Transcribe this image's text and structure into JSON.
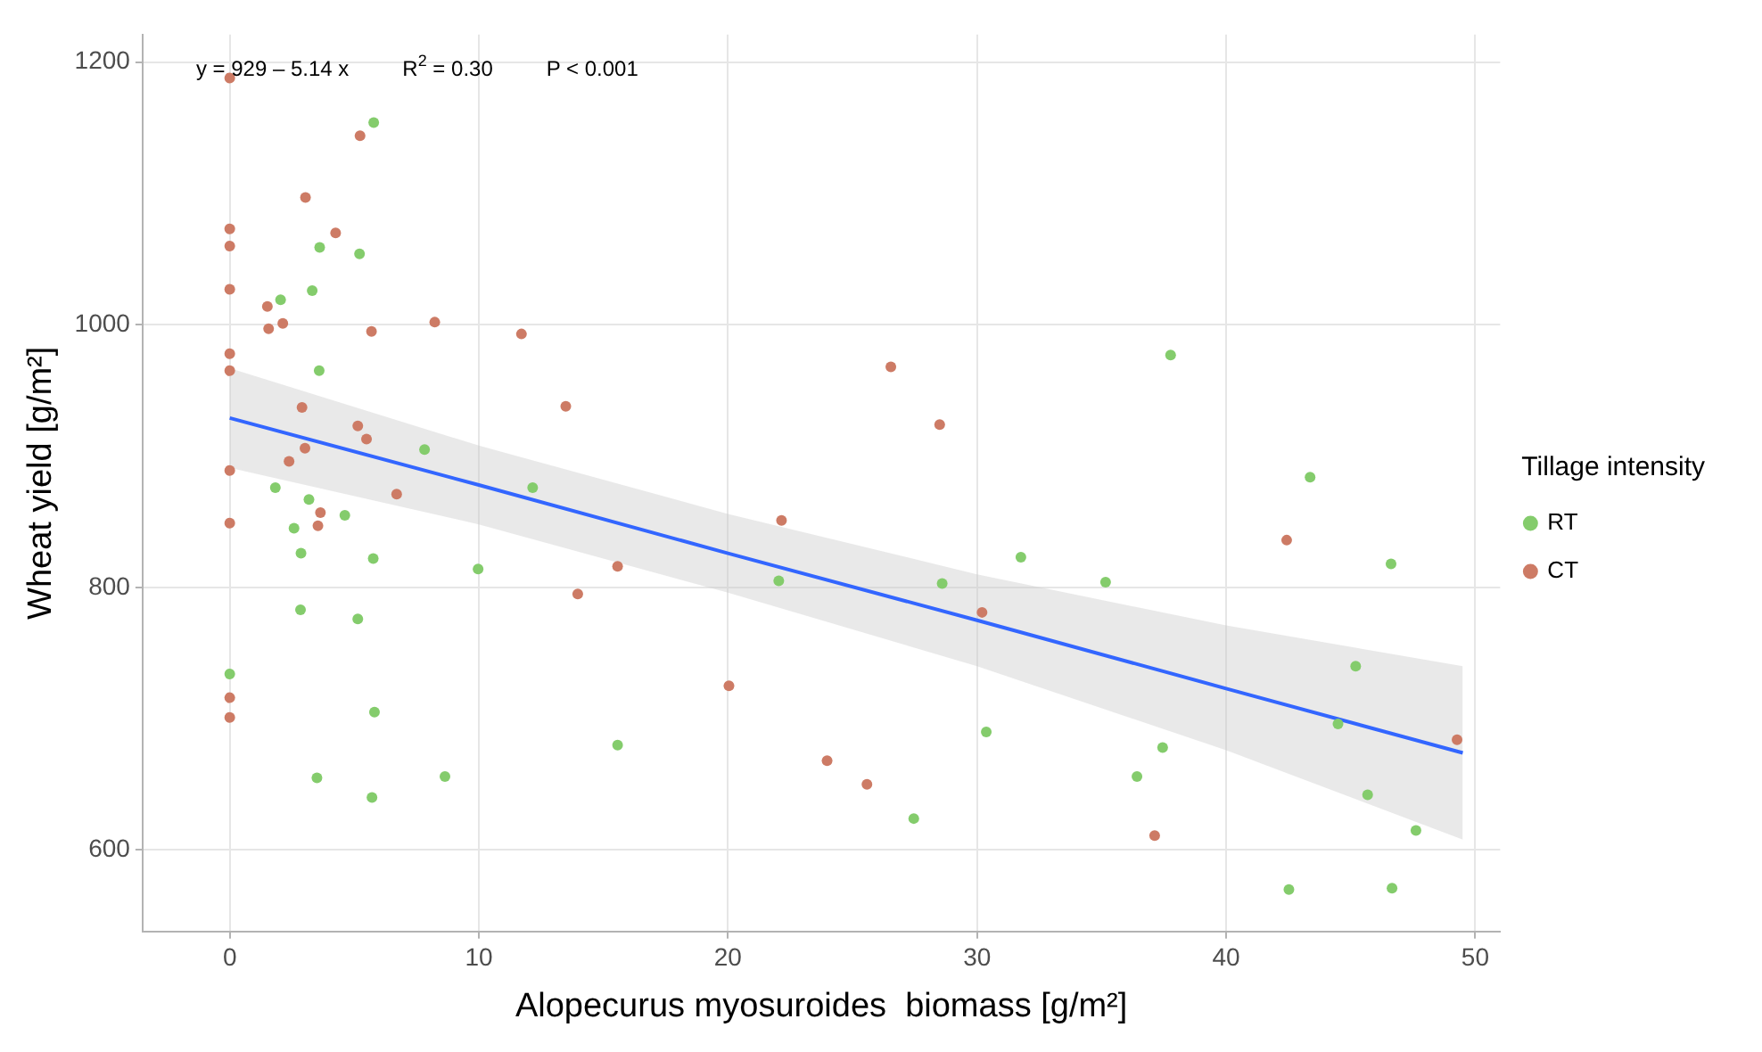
{
  "chart_data": {
    "type": "scatter",
    "xlabel": "Alopecurus myosuroides  biomass [g/m²]",
    "ylabel": "Wheat yield [g/m²]",
    "legend_title": "Tillage intensity",
    "legend": "right",
    "grid": true,
    "marker": "circle",
    "xlim": [
      -3.5,
      51
    ],
    "xticks": [
      0,
      10,
      20,
      30,
      40,
      50
    ],
    "ylim": [
      538,
      1221
    ],
    "yticks": [
      600,
      800,
      1000,
      1200
    ],
    "annotations": [
      "y = 929 – 5.14 x",
      "R$^{2}$ = 0.30",
      "P < 0.001"
    ],
    "series": [
      {
        "name": "RT",
        "color": "#84cc6c",
        "x": [
          5.78,
          5.21,
          3.61,
          3.31,
          2.04,
          3.59,
          7.82,
          1.83,
          12.16,
          3.18,
          4.62,
          2.58,
          2.86,
          5.76,
          9.97,
          2.84,
          5.14,
          0,
          5.81,
          15.57,
          3.5,
          8.64,
          5.71,
          22.04,
          28.6,
          31.76,
          30.37,
          27.46,
          37.77,
          35.16,
          43.37,
          46.62,
          45.2,
          44.49,
          37.45,
          36.42,
          45.68,
          47.62,
          42.52,
          46.66
        ],
        "values": [
          1154,
          1054,
          1059,
          1026,
          1019,
          965,
          905,
          876,
          876,
          867,
          855,
          845,
          826,
          822,
          814,
          783,
          776,
          734,
          705,
          680,
          655,
          656,
          640,
          805,
          803,
          823,
          690,
          624,
          977,
          804,
          884,
          818,
          740,
          696,
          678,
          656,
          642,
          615,
          570,
          571
        ]
      },
      {
        "name": "CT",
        "color": "#cd7b65",
        "x": [
          0,
          5.23,
          3.04,
          0,
          4.25,
          0,
          0,
          1.51,
          1.56,
          2.13,
          5.69,
          8.23,
          11.71,
          0,
          0,
          2.9,
          13.49,
          5.14,
          5.49,
          3.02,
          2.38,
          0,
          6.7,
          3.64,
          0,
          3.54,
          15.57,
          13.97,
          0,
          0,
          26.54,
          28.5,
          22.15,
          30.2,
          20.04,
          23.98,
          25.58,
          42.43,
          49.27,
          37.13
        ],
        "values": [
          1188,
          1144,
          1097,
          1073,
          1070,
          1060,
          1027,
          1014,
          997,
          1001,
          995,
          1002,
          993,
          978,
          965,
          937,
          938,
          923,
          913,
          906,
          896,
          889,
          871,
          857,
          849,
          847,
          816,
          795,
          716,
          701,
          968,
          924,
          851,
          781,
          725,
          668,
          650,
          836,
          684,
          611
        ]
      },
      {
        "type": "line",
        "marker": "none",
        "color": "#3366ff",
        "x": [
          0,
          10,
          20,
          30,
          40,
          49.5
        ],
        "values": [
          929,
          878,
          826,
          775,
          723,
          674
        ],
        "lower": [
          891,
          848,
          796,
          740,
          676,
          608
        ],
        "upper": [
          967,
          908,
          856,
          810,
          771,
          740
        ]
      }
    ]
  }
}
